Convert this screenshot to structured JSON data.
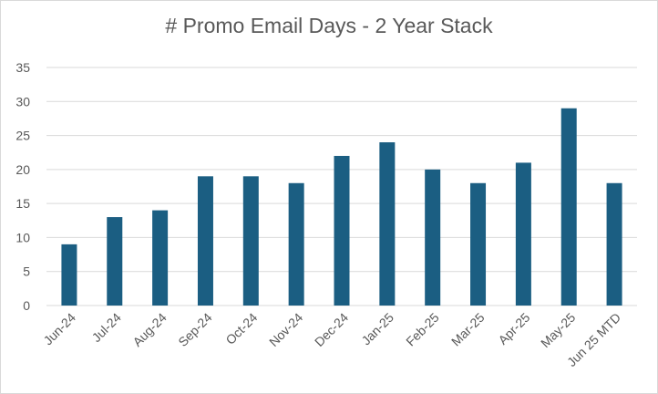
{
  "chart_data": {
    "type": "bar",
    "title": "# Promo Email Days - 2 Year Stack",
    "xlabel": "",
    "ylabel": "",
    "categories": [
      "Jun-24",
      "Jul-24",
      "Aug-24",
      "Sep-24",
      "Oct-24",
      "Nov-24",
      "Dec-24",
      "Jan-25",
      "Feb-25",
      "Mar-25",
      "Apr-25",
      "May-25",
      "Jun 25 MTD"
    ],
    "values": [
      9,
      13,
      14,
      19,
      19,
      18,
      22,
      24,
      20,
      18,
      21,
      29,
      18
    ],
    "ylim": [
      0,
      35
    ],
    "yticks": [
      0,
      5,
      10,
      15,
      20,
      25,
      30,
      35
    ],
    "grid": true,
    "legend": "none",
    "colors": {
      "bar": "#1b5e82",
      "grid": "#d9d9d9",
      "text": "#595959"
    }
  }
}
